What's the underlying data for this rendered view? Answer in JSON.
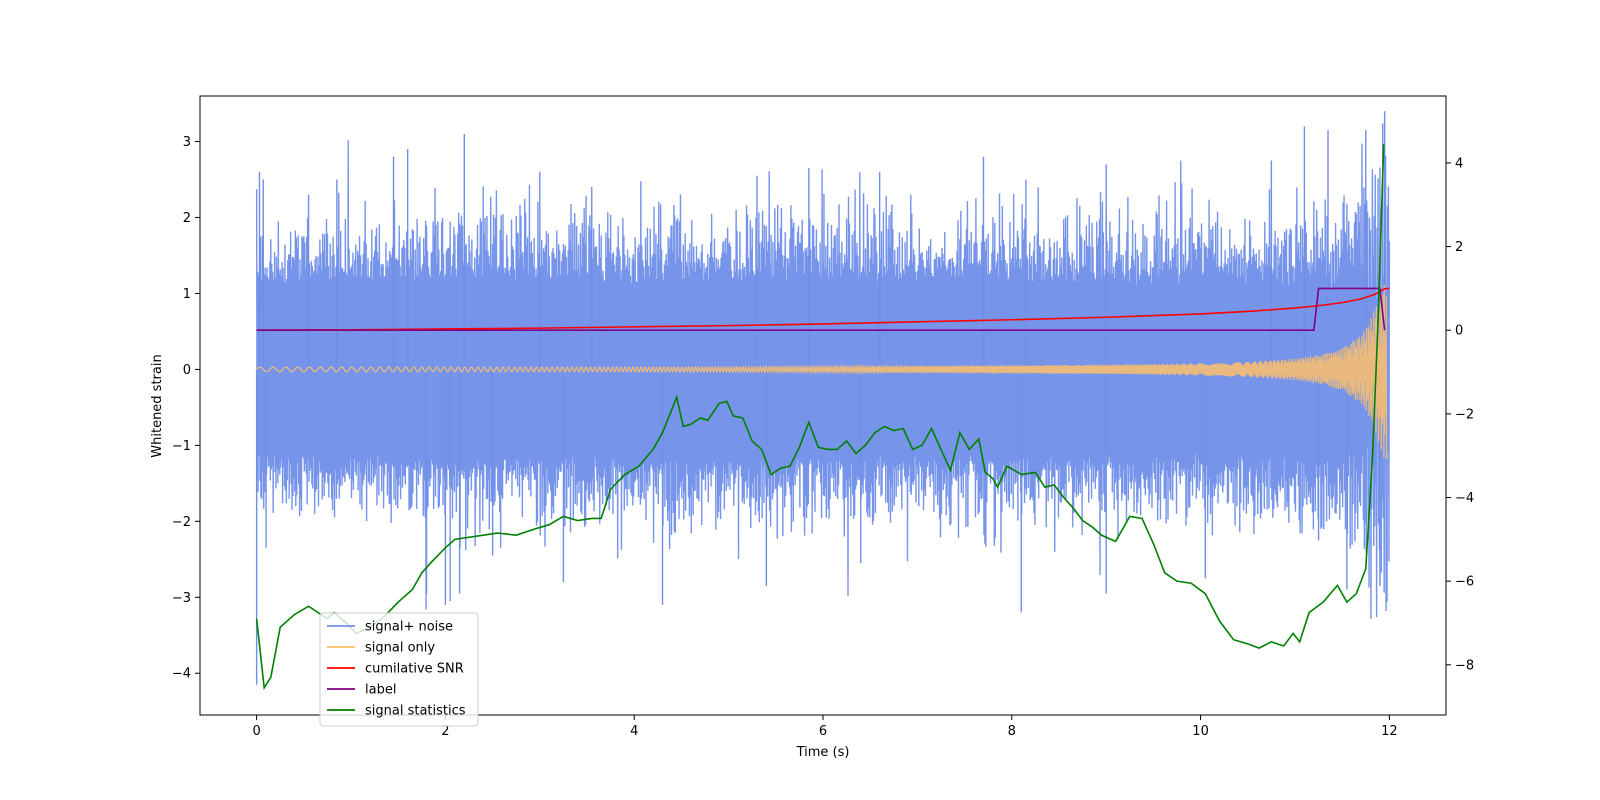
{
  "chart_data": {
    "type": "line",
    "title": "",
    "xlabel": "Time (s)",
    "ylabel": "Whitened strain",
    "ylabel_right": "",
    "xlim": [
      -0.6,
      12.6
    ],
    "ylim": [
      -4.55,
      3.6
    ],
    "ylim_right": [
      -9.2,
      5.6
    ],
    "x_ticks": [
      0,
      2,
      4,
      6,
      8,
      10,
      12
    ],
    "y_ticks": [
      -4,
      -3,
      -2,
      -1,
      0,
      1,
      2,
      3
    ],
    "y_ticks_right": [
      -8,
      -6,
      -4,
      -2,
      0,
      2,
      4
    ],
    "grid": false,
    "legend_position": "lower left",
    "series": [
      {
        "name": "signal+ noise",
        "axis": "left",
        "color": "#6f8ee8",
        "description_values": {
          "envelope_upper": {
            "x": [
              0,
              1,
              2,
              3,
              4,
              5,
              6,
              7,
              8,
              9,
              10,
              11,
              11.5,
              11.9,
              12
            ],
            "y": [
              1.5,
              1.55,
              1.6,
              1.6,
              1.55,
              1.6,
              1.6,
              1.55,
              1.6,
              1.55,
              1.6,
              1.6,
              1.7,
              2.0,
              2.2
            ]
          },
          "envelope_lower": {
            "x": [
              0,
              1,
              2,
              3,
              4,
              5,
              6,
              7,
              8,
              9,
              10,
              11,
              11.5,
              11.9,
              12
            ],
            "y": [
              -1.5,
              -1.55,
              -1.6,
              -1.6,
              -1.55,
              -1.6,
              -1.6,
              -1.55,
              -1.6,
              -1.55,
              -1.6,
              -1.6,
              -1.7,
              -2.0,
              -2.2
            ]
          },
          "peaks_up": {
            "x": [
              0.03,
              0.07,
              0.55,
              0.85,
              1.45,
              1.6,
              2.2,
              3.0,
              3.55,
              5.3,
              5.85,
              6.6,
              7.7,
              8.15,
              9.0,
              10.75,
              11.1,
              11.35,
              11.75,
              11.95
            ],
            "y": [
              2.6,
              2.5,
              2.3,
              2.5,
              2.8,
              2.9,
              3.1,
              2.6,
              2.4,
              2.55,
              2.65,
              2.6,
              2.8,
              2.5,
              2.7,
              2.75,
              3.2,
              3.15,
              3.15,
              3.4
            ]
          },
          "peaks_down": {
            "x": [
              0.0,
              0.1,
              1.8,
              2.0,
              2.05,
              2.15,
              2.5,
              3.25,
              4.3,
              5.4,
              6.4,
              8.1,
              9.0,
              10.05,
              11.25,
              11.55,
              11.9
            ],
            "y": [
              -4.15,
              -2.35,
              -2.95,
              -3.1,
              -3.05,
              -2.95,
              -2.45,
              -2.8,
              -3.1,
              -2.85,
              -2.55,
              -3.2,
              -2.95,
              -2.75,
              -2.25,
              -2.9,
              -2.85
            ]
          }
        }
      },
      {
        "name": "signal only",
        "axis": "left",
        "color": "#ffbf6a",
        "description_values": {
          "amplitude": {
            "x": [
              0,
              2,
              4,
              6,
              8,
              9,
              10,
              10.5,
              11,
              11.3,
              11.5,
              11.7,
              11.8,
              11.9,
              11.95
            ],
            "y": [
              0.03,
              0.03,
              0.03,
              0.04,
              0.05,
              0.06,
              0.08,
              0.1,
              0.14,
              0.2,
              0.28,
              0.45,
              0.65,
              1.0,
              1.2
            ]
          }
        }
      },
      {
        "name": "cumilative SNR",
        "axis": "right",
        "color": "#ff0000",
        "x": [
          0,
          1,
          2,
          3,
          4,
          5,
          6,
          7,
          8,
          9,
          10,
          10.5,
          11,
          11.3,
          11.5,
          11.7,
          11.85,
          11.95,
          12.0
        ],
        "y": [
          0,
          0.01,
          0.03,
          0.05,
          0.08,
          0.11,
          0.15,
          0.2,
          0.25,
          0.31,
          0.39,
          0.45,
          0.53,
          0.6,
          0.66,
          0.75,
          0.86,
          0.99,
          1.0
        ]
      },
      {
        "name": "label",
        "axis": "right",
        "color": "#800080",
        "x": [
          0,
          11.2,
          11.25,
          11.9,
          11.95
        ],
        "y": [
          0,
          0,
          1,
          1,
          0
        ]
      },
      {
        "name": "signal statistics",
        "axis": "right",
        "color": "#008000",
        "x": [
          0,
          0.08,
          0.15,
          0.25,
          0.4,
          0.55,
          0.75,
          0.82,
          0.95,
          1.05,
          1.2,
          1.35,
          1.5,
          1.65,
          1.75,
          1.85,
          2.0,
          2.1,
          2.25,
          2.4,
          2.55,
          2.75,
          2.95,
          3.1,
          3.25,
          3.4,
          3.55,
          3.65,
          3.75,
          3.9,
          4.05,
          4.2,
          4.3,
          4.38,
          4.45,
          4.52,
          4.6,
          4.7,
          4.78,
          4.9,
          4.98,
          5.05,
          5.15,
          5.25,
          5.35,
          5.45,
          5.55,
          5.65,
          5.75,
          5.85,
          5.95,
          6.05,
          6.15,
          6.25,
          6.35,
          6.45,
          6.55,
          6.65,
          6.75,
          6.85,
          6.95,
          7.05,
          7.15,
          7.25,
          7.35,
          7.45,
          7.55,
          7.65,
          7.72,
          7.8,
          7.85,
          7.95,
          8.1,
          8.25,
          8.35,
          8.45,
          8.55,
          8.65,
          8.75,
          8.85,
          8.95,
          9.1,
          9.25,
          9.38,
          9.5,
          9.62,
          9.75,
          9.9,
          10.05,
          10.2,
          10.35,
          10.5,
          10.62,
          10.75,
          10.88,
          10.98,
          11.05,
          11.15,
          11.3,
          11.45,
          11.55,
          11.65,
          11.75,
          11.82,
          11.88,
          11.94
        ],
        "y": [
          -6.9,
          -8.55,
          -8.3,
          -7.1,
          -6.8,
          -6.6,
          -6.9,
          -6.75,
          -7.0,
          -7.25,
          -7.1,
          -6.85,
          -6.5,
          -6.2,
          -5.8,
          -5.55,
          -5.2,
          -5.0,
          -4.95,
          -4.9,
          -4.85,
          -4.9,
          -4.75,
          -4.65,
          -4.45,
          -4.55,
          -4.5,
          -4.5,
          -3.8,
          -3.45,
          -3.25,
          -2.85,
          -2.45,
          -2.0,
          -1.6,
          -2.3,
          -2.25,
          -2.1,
          -2.15,
          -1.75,
          -1.7,
          -2.05,
          -2.1,
          -2.65,
          -2.85,
          -3.45,
          -3.3,
          -3.25,
          -2.8,
          -2.2,
          -2.8,
          -2.85,
          -2.85,
          -2.65,
          -2.95,
          -2.75,
          -2.45,
          -2.3,
          -2.4,
          -2.35,
          -2.85,
          -2.75,
          -2.35,
          -2.85,
          -3.35,
          -2.45,
          -2.85,
          -2.6,
          -3.4,
          -3.55,
          -3.75,
          -3.25,
          -3.45,
          -3.4,
          -3.75,
          -3.7,
          -4.0,
          -4.25,
          -4.55,
          -4.7,
          -4.9,
          -5.05,
          -4.45,
          -4.5,
          -5.1,
          -5.8,
          -6.0,
          -6.05,
          -6.3,
          -6.95,
          -7.4,
          -7.5,
          -7.6,
          -7.45,
          -7.55,
          -7.25,
          -7.45,
          -6.75,
          -6.5,
          -6.1,
          -6.5,
          -6.3,
          -5.7,
          -3.1,
          0.2,
          4.45
        ]
      }
    ]
  }
}
